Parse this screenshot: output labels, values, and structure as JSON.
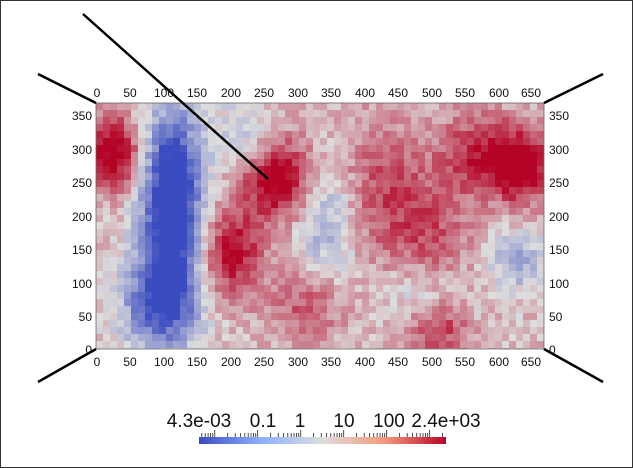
{
  "viewport": {
    "top_axis_ticks": [
      "0",
      "50",
      "100",
      "150",
      "200",
      "250",
      "300",
      "350",
      "400",
      "450",
      "500",
      "550",
      "600",
      "650"
    ],
    "bottom_axis_ticks": [
      "0",
      "50",
      "100",
      "150",
      "200",
      "250",
      "300",
      "350",
      "400",
      "450",
      "500",
      "550",
      "600",
      "650"
    ],
    "left_axis_ticks": [
      "350",
      "300",
      "250",
      "200",
      "150",
      "100",
      "50",
      "0"
    ],
    "right_axis_ticks": [
      "350",
      "300",
      "250",
      "200",
      "150",
      "100",
      "50",
      "0"
    ],
    "x_range": [
      0,
      670
    ],
    "y_range": [
      0,
      360
    ]
  },
  "colorbar": {
    "scale": "log",
    "range": [
      0.0043,
      2400
    ],
    "labels": [
      "4.3e-03",
      "0.1",
      "1",
      "10",
      "100",
      "2.4e+03"
    ],
    "colors": {
      "low": "#3b4cc0",
      "mid": "#dddddd",
      "high": "#b40426"
    }
  },
  "colors": {
    "background": "#ffffff",
    "frame_border": "#333333",
    "axis_line": "#000000"
  }
}
